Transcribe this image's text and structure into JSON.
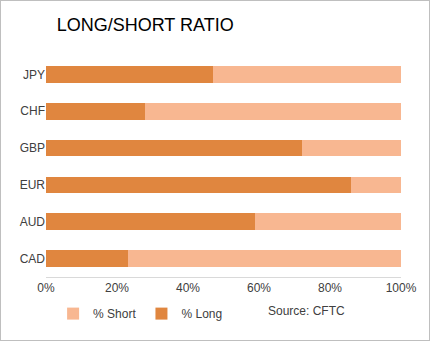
{
  "chart_data": {
    "type": "bar",
    "orientation": "horizontal",
    "stacked": true,
    "title": "LONG/SHORT RATIO",
    "categories": [
      "JPY",
      "CHF",
      "GBP",
      "EUR",
      "AUD",
      "CAD"
    ],
    "series": [
      {
        "name": "% Long",
        "color": "#e0863f",
        "values": [
          47,
          28,
          72,
          86,
          59,
          23
        ]
      },
      {
        "name": "% Short",
        "color": "#f8b791",
        "values": [
          53,
          72,
          28,
          14,
          41,
          77
        ]
      }
    ],
    "xlim": [
      0,
      100
    ],
    "xticks": [
      {
        "value": 0,
        "label": "0%"
      },
      {
        "value": 20,
        "label": "20%"
      },
      {
        "value": 40,
        "label": "40%"
      },
      {
        "value": 60,
        "label": "60%"
      },
      {
        "value": 80,
        "label": "80%"
      },
      {
        "value": 100,
        "label": "100%"
      }
    ],
    "grid": false,
    "legend": "bottom",
    "annotations": [
      "Source: CFTC"
    ]
  }
}
